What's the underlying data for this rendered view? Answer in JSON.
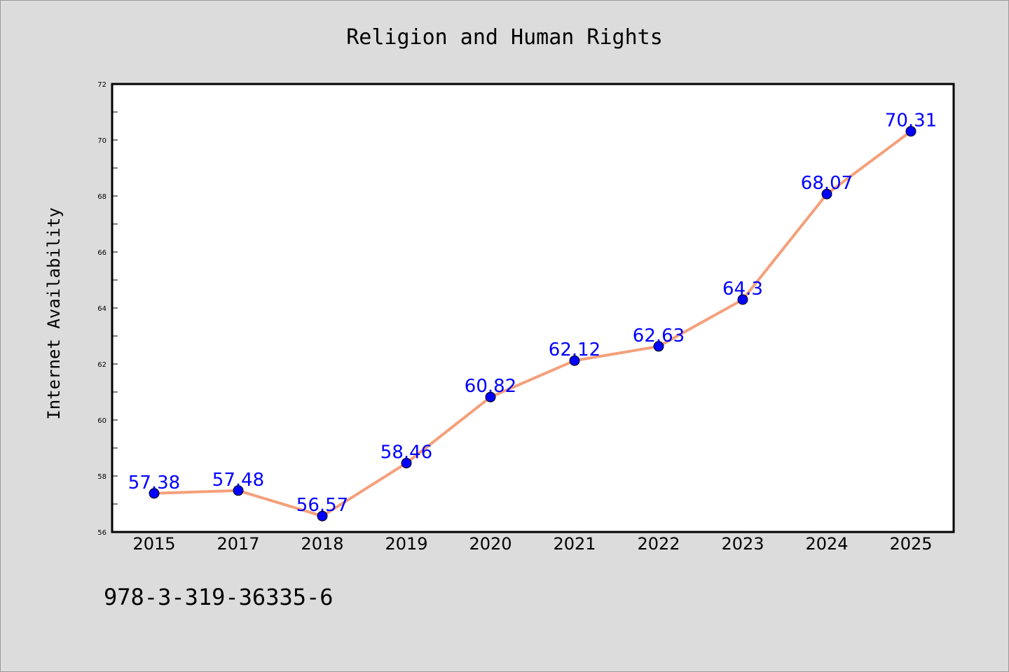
{
  "chart_data": {
    "type": "line",
    "title": "Religion and Human Rights",
    "xlabel": "",
    "ylabel": "Internet Availability",
    "categories": [
      "2015",
      "2017",
      "2018",
      "2019",
      "2020",
      "2021",
      "2022",
      "2023",
      "2024",
      "2025"
    ],
    "values": [
      57.38,
      57.48,
      56.57,
      58.46,
      60.82,
      62.12,
      62.63,
      64.3,
      68.07,
      70.31
    ],
    "data_labels": [
      "57.38",
      "57.48",
      "56.57",
      "58.46",
      "60.82",
      "62.12",
      "62.63",
      "64.3",
      "68.07",
      "70.31"
    ],
    "ylim": [
      56,
      72
    ],
    "yticks": [
      "56",
      "58",
      "60",
      "62",
      "64",
      "66",
      "68",
      "70",
      "72"
    ],
    "grid": false,
    "colors": {
      "line": "#f4a07a",
      "marker": "#0000ff",
      "label": "#0000ff",
      "background": "#dcdcdc",
      "plot_bg": "#ffffff"
    }
  },
  "annotation": "978-3-319-36335-6"
}
